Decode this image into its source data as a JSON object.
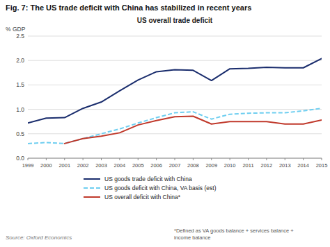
{
  "chart_data": {
    "type": "line",
    "title": "Fig. 7: The US trade deficit with China has stabilized in recent years",
    "subtitle": "US overall trade deficit",
    "y_label": "% GDP",
    "x": [
      1999,
      2000,
      2001,
      2002,
      2003,
      2004,
      2005,
      2006,
      2007,
      2008,
      2009,
      2010,
      2011,
      2012,
      2013,
      2014,
      2015
    ],
    "series": [
      {
        "name": "US goods trade deficit with China",
        "color": "#1a2d6d",
        "line_style": "solid",
        "values": [
          0.72,
          0.82,
          0.83,
          1.02,
          1.15,
          1.38,
          1.6,
          1.77,
          1.81,
          1.8,
          1.59,
          1.83,
          1.84,
          1.86,
          1.85,
          1.85,
          2.04
        ]
      },
      {
        "name": "US goods deficit with China, VA basis (est)",
        "color": "#6ecef0",
        "line_style": "dashed",
        "values": [
          0.3,
          0.32,
          0.3,
          0.4,
          0.5,
          0.6,
          0.72,
          0.83,
          0.93,
          0.95,
          0.8,
          0.9,
          0.92,
          0.93,
          0.93,
          0.97,
          1.02
        ]
      },
      {
        "name": "US overall deficit with China*",
        "color": "#c0392b",
        "line_style": "solid",
        "values": [
          null,
          null,
          0.3,
          0.4,
          0.45,
          0.52,
          0.68,
          0.77,
          0.85,
          0.86,
          0.7,
          0.75,
          0.75,
          0.75,
          0.7,
          0.7,
          0.78
        ]
      }
    ],
    "xlim": [
      1999,
      2015
    ],
    "xticks": [
      1999,
      2000,
      2001,
      2002,
      2003,
      2004,
      2005,
      2006,
      2007,
      2008,
      2009,
      2010,
      2011,
      2012,
      2013,
      2014,
      2015
    ],
    "ylim": [
      0.0,
      2.5
    ],
    "yticks": [
      {
        "value": 0.0,
        "label": "0.0"
      },
      0.5,
      {
        "value": 1.0,
        "label": "1.0"
      },
      1.5,
      {
        "value": 2.0,
        "label": "2.0"
      },
      2.5
    ],
    "grid": true,
    "legend": "bottom",
    "annotations": [
      "Source: Oxford Economics",
      "*Defined as VA goods balance + services balance +\nincome balance"
    ]
  }
}
